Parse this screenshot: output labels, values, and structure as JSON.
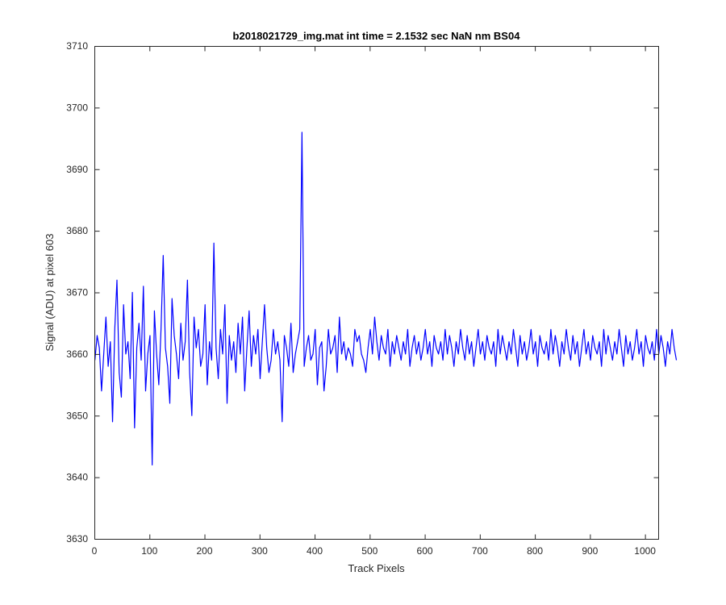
{
  "chart_data": {
    "type": "line",
    "title": "b2018021729_img.mat int time = 2.1532 sec  NaN nm BS04",
    "xlabel": "Track Pixels",
    "ylabel": "Signal (ADU) at pixel 603",
    "xlim": [
      0,
      1024
    ],
    "ylim": [
      3630,
      3710
    ],
    "xticks": [
      0,
      100,
      200,
      300,
      400,
      500,
      600,
      700,
      800,
      900,
      1000
    ],
    "yticks": [
      3630,
      3640,
      3650,
      3660,
      3670,
      3680,
      3690,
      3700,
      3710
    ],
    "grid": false,
    "series_color": "#0000ff",
    "series": [
      {
        "name": "",
        "x_start": 1,
        "x_step": 4,
        "values": [
          3659,
          3663,
          3661,
          3654,
          3660,
          3666,
          3658,
          3662,
          3649,
          3664,
          3672,
          3657,
          3653,
          3668,
          3660,
          3662,
          3656,
          3670,
          3648,
          3661,
          3665,
          3659,
          3671,
          3654,
          3660,
          3663,
          3642,
          3667,
          3660,
          3655,
          3664,
          3676,
          3661,
          3658,
          3652,
          3669,
          3663,
          3660,
          3656,
          3665,
          3659,
          3662,
          3672,
          3657,
          3650,
          3666,
          3661,
          3664,
          3658,
          3660,
          3668,
          3655,
          3662,
          3659,
          3678,
          3661,
          3656,
          3664,
          3660,
          3668,
          3652,
          3663,
          3659,
          3662,
          3657,
          3665,
          3660,
          3666,
          3654,
          3661,
          3667,
          3658,
          3663,
          3660,
          3664,
          3656,
          3662,
          3668,
          3661,
          3657,
          3659,
          3664,
          3660,
          3662,
          3659,
          3649,
          3663,
          3661,
          3658,
          3665,
          3657,
          3660,
          3662,
          3664,
          3696,
          3658,
          3661,
          3663,
          3659,
          3660,
          3664,
          3655,
          3661,
          3662,
          3654,
          3658,
          3664,
          3660,
          3661,
          3663,
          3657,
          3666,
          3660,
          3662,
          3659,
          3661,
          3660,
          3658,
          3664,
          3662,
          3663,
          3660,
          3659,
          3657,
          3661,
          3664,
          3660,
          3666,
          3662,
          3659,
          3663,
          3661,
          3660,
          3664,
          3658,
          3662,
          3660,
          3663,
          3661,
          3659,
          3662,
          3660,
          3664,
          3658,
          3661,
          3663,
          3660,
          3662,
          3659,
          3661,
          3664,
          3660,
          3662,
          3658,
          3663,
          3661,
          3660,
          3662,
          3659,
          3664,
          3660,
          3663,
          3661,
          3658,
          3662,
          3660,
          3664,
          3661,
          3659,
          3663,
          3660,
          3662,
          3658,
          3661,
          3664,
          3660,
          3662,
          3659,
          3663,
          3661,
          3660,
          3662,
          3658,
          3664,
          3660,
          3663,
          3661,
          3659,
          3662,
          3660,
          3664,
          3661,
          3658,
          3663,
          3660,
          3662,
          3659,
          3661,
          3664,
          3660,
          3662,
          3658,
          3663,
          3661,
          3660,
          3662,
          3659,
          3664,
          3660,
          3663,
          3661,
          3658,
          3662,
          3660,
          3664,
          3661,
          3659,
          3663,
          3660,
          3662,
          3658,
          3661,
          3664,
          3660,
          3662,
          3659,
          3663,
          3661,
          3660,
          3662,
          3658,
          3664,
          3660,
          3663,
          3661,
          3659,
          3662,
          3660,
          3664,
          3661,
          3658,
          3663,
          3660,
          3662,
          3659,
          3661,
          3664,
          3660,
          3662,
          3658,
          3663,
          3661,
          3660,
          3662,
          3659,
          3664,
          3660,
          3663,
          3661,
          3658,
          3662,
          3660,
          3664,
          3661,
          3659
        ]
      }
    ]
  }
}
